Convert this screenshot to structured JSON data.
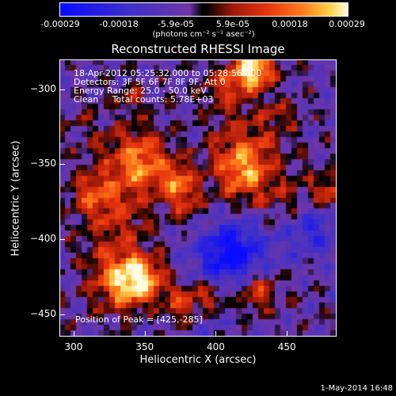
{
  "colorbar": {
    "tick_labels": [
      "-0.00029",
      "-0.00018",
      "-5.9e-05",
      "5.9e-05",
      "0.00018",
      "0.00029"
    ],
    "unit_label": "(photons cm⁻² s⁻¹ asec⁻²)"
  },
  "chart_data": {
    "type": "heatmap",
    "title": "Reconstructed RHESSI Image",
    "xlabel": "Heliocentric X (arcsec)",
    "ylabel": "Heliocentric Y (arcsec)",
    "xlim": [
      290,
      485
    ],
    "ylim": [
      -465,
      -280
    ],
    "x_ticks": [
      300,
      350,
      400,
      450
    ],
    "y_ticks": [
      -300,
      -350,
      -400,
      -450
    ],
    "value_range": [
      -0.00029,
      0.00029
    ],
    "colormap": [
      "#0b0bff",
      "#4030c8",
      "#6e36a6",
      "#000000",
      "#a0190a",
      "#e6330e",
      "#ff7a1a",
      "#ffd24a",
      "#fffbe0"
    ],
    "annotations": {
      "time_range": "18-Apr-2012 05:25:32.000 to 05:28:56.000",
      "detectors": "Detectors: 3F 5F 6F 7F 8F 9F, Att 0",
      "energy_range": "Energy Range: 25.0 - 50.0 keV",
      "clean_counts": "Clean     Total counts: 5.78E+03",
      "peak_position": "Position of Peak = [425,-285]"
    },
    "peak": {
      "x": 425,
      "y": -285
    }
  },
  "footer": {
    "date_stamp": "1-May-2014 16:48"
  }
}
